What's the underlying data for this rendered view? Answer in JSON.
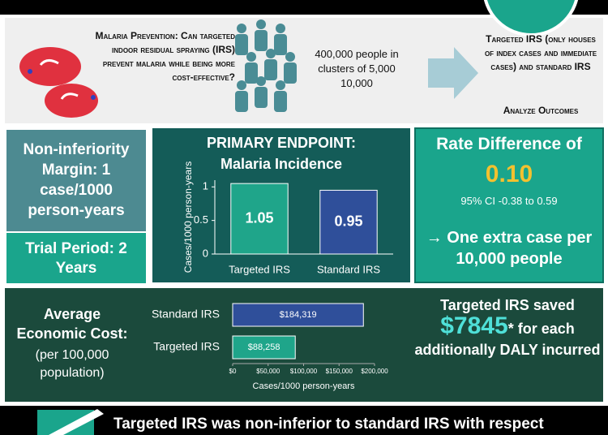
{
  "prevention": {
    "question": "Malaria Prevention: Can targeted indoor residual spraying (IRS) prevent malaria while being more cost-effective?",
    "population": "400,000 people in clusters of 5,000 10,000",
    "arms": "Targeted IRS (only houses of index cases and immediate cases) and standard IRS",
    "outcome": "Analyze Outcomes"
  },
  "margin": "Non-inferiority Margin: 1 case/1000 person-years",
  "trial_period": "Trial Period: 2 Years",
  "endpoint": {
    "title": "PRIMARY ENDPOINT:",
    "subtitle": "Malaria Incidence",
    "chart": {
      "type": "bar",
      "y_label": "Cases/1000 person-years",
      "categories": [
        "Targeted IRS",
        "Standard IRS"
      ],
      "values": [
        1.05,
        0.95
      ],
      "colors": [
        "#1fa58a",
        "#2f4f9a"
      ],
      "ylim": [
        0,
        1.1
      ],
      "yticks": [
        0,
        0.5,
        1
      ]
    }
  },
  "rate": {
    "title": "Rate Difference of",
    "value": "0.10",
    "ci": "95% CI -0.38 to 0.59",
    "conclusion": "→ One extra case per 10,000 people"
  },
  "cost": {
    "title": "Average Economic Cost:",
    "subtitle": "(per 100,000 population)",
    "chart": {
      "type": "barh",
      "categories": [
        "Standard IRS",
        "Targeted IRS"
      ],
      "values": [
        184319,
        88258
      ],
      "value_labels": [
        "$184,319",
        "$88,258"
      ],
      "colors": [
        "#2f4f9a",
        "#1fa58a"
      ],
      "xlim": [
        0,
        200000
      ],
      "xticks": [
        {
          "value": 0,
          "label": "$0"
        },
        {
          "value": 50000,
          "label": "$50,000"
        },
        {
          "value": 100000,
          "label": "$100,000"
        },
        {
          "value": 150000,
          "label": "$150,000"
        },
        {
          "value": 200000,
          "label": "$200,000"
        }
      ],
      "x_label": "Cases/1000 person-years"
    }
  },
  "savings": {
    "prefix": "Targeted IRS saved",
    "amount": "$7845",
    "footnote": "*",
    "suffix": "for each additionally DALY incurred"
  },
  "conclusion": "Targeted IRS was non-inferior to standard IRS with respect"
}
